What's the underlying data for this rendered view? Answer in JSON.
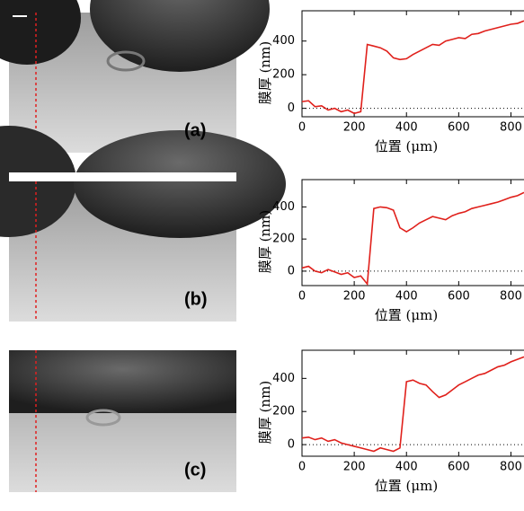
{
  "chart_data": [
    {
      "type": "line",
      "panel_label": "(a)",
      "xlabel": "位置 (μm)",
      "ylabel": "膜厚 (nm)",
      "x": [
        0,
        25,
        50,
        75,
        100,
        125,
        150,
        175,
        200,
        225,
        250,
        275,
        300,
        325,
        350,
        375,
        400,
        425,
        450,
        475,
        500,
        525,
        550,
        575,
        600,
        625,
        650,
        675,
        700,
        725,
        750,
        775,
        800,
        825,
        850
      ],
      "values": [
        40,
        45,
        10,
        15,
        -10,
        0,
        -20,
        -10,
        -30,
        -20,
        380,
        370,
        360,
        340,
        300,
        290,
        295,
        320,
        340,
        360,
        380,
        375,
        400,
        410,
        420,
        415,
        440,
        445,
        460,
        470,
        480,
        490,
        500,
        505,
        520
      ],
      "color": "#e0201b",
      "xlim": [
        0,
        850
      ],
      "ylim": [
        -50,
        580
      ],
      "xticks": [
        0,
        200,
        400,
        600,
        800
      ],
      "yticks": [
        0,
        200,
        400
      ]
    },
    {
      "type": "line",
      "panel_label": "(b)",
      "xlabel": "位置 (μm)",
      "ylabel": "膜厚 (nm)",
      "x": [
        0,
        25,
        50,
        75,
        100,
        125,
        150,
        175,
        200,
        225,
        250,
        275,
        300,
        325,
        350,
        375,
        400,
        425,
        450,
        475,
        500,
        525,
        550,
        575,
        600,
        625,
        650,
        675,
        700,
        725,
        750,
        775,
        800,
        825,
        850
      ],
      "values": [
        20,
        30,
        0,
        -10,
        10,
        -5,
        -20,
        -10,
        -40,
        -30,
        -80,
        390,
        400,
        395,
        380,
        270,
        245,
        270,
        300,
        320,
        340,
        330,
        320,
        345,
        360,
        370,
        390,
        400,
        410,
        420,
        430,
        445,
        460,
        470,
        490
      ],
      "color": "#e0201b",
      "xlim": [
        0,
        850
      ],
      "ylim": [
        -90,
        570
      ],
      "xticks": [
        0,
        200,
        400,
        600,
        800
      ],
      "yticks": [
        0,
        200,
        400
      ]
    },
    {
      "type": "line",
      "panel_label": "(c)",
      "xlabel": "位置 (μm)",
      "ylabel": "膜厚 (nm)",
      "x": [
        0,
        25,
        50,
        75,
        100,
        125,
        150,
        175,
        200,
        225,
        250,
        275,
        300,
        325,
        350,
        375,
        400,
        425,
        450,
        475,
        500,
        525,
        550,
        575,
        600,
        625,
        650,
        675,
        700,
        725,
        750,
        775,
        800,
        825,
        850
      ],
      "values": [
        40,
        45,
        30,
        40,
        20,
        30,
        10,
        0,
        -10,
        -20,
        -30,
        -40,
        -20,
        -30,
        -40,
        -20,
        380,
        390,
        370,
        360,
        320,
        285,
        300,
        330,
        360,
        380,
        400,
        420,
        430,
        450,
        470,
        480,
        500,
        515,
        530
      ],
      "color": "#e0201b",
      "xlim": [
        0,
        850
      ],
      "ylim": [
        -70,
        570
      ],
      "xticks": [
        0,
        200,
        400,
        600,
        800
      ],
      "yticks": [
        0,
        200,
        400
      ]
    }
  ]
}
